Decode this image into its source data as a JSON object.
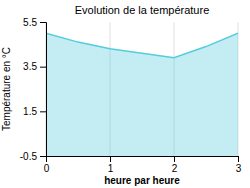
{
  "chart_data": {
    "type": "area",
    "title": "Evolution de la température",
    "xlabel": "heure par heure",
    "ylabel": "Température en °C",
    "x": [
      0,
      0.5,
      1,
      1.5,
      2,
      2.5,
      3
    ],
    "values": [
      5.0,
      4.6,
      4.3,
      4.1,
      3.9,
      4.4,
      5.0
    ],
    "color": "#55ccdd",
    "xlim": [
      0,
      3
    ],
    "ylim": [
      -0.5,
      5.5
    ],
    "xticks": [
      0,
      1,
      2,
      3
    ],
    "yticks": [
      -0.5,
      1.5,
      3.5,
      5.5
    ],
    "grid": true
  }
}
